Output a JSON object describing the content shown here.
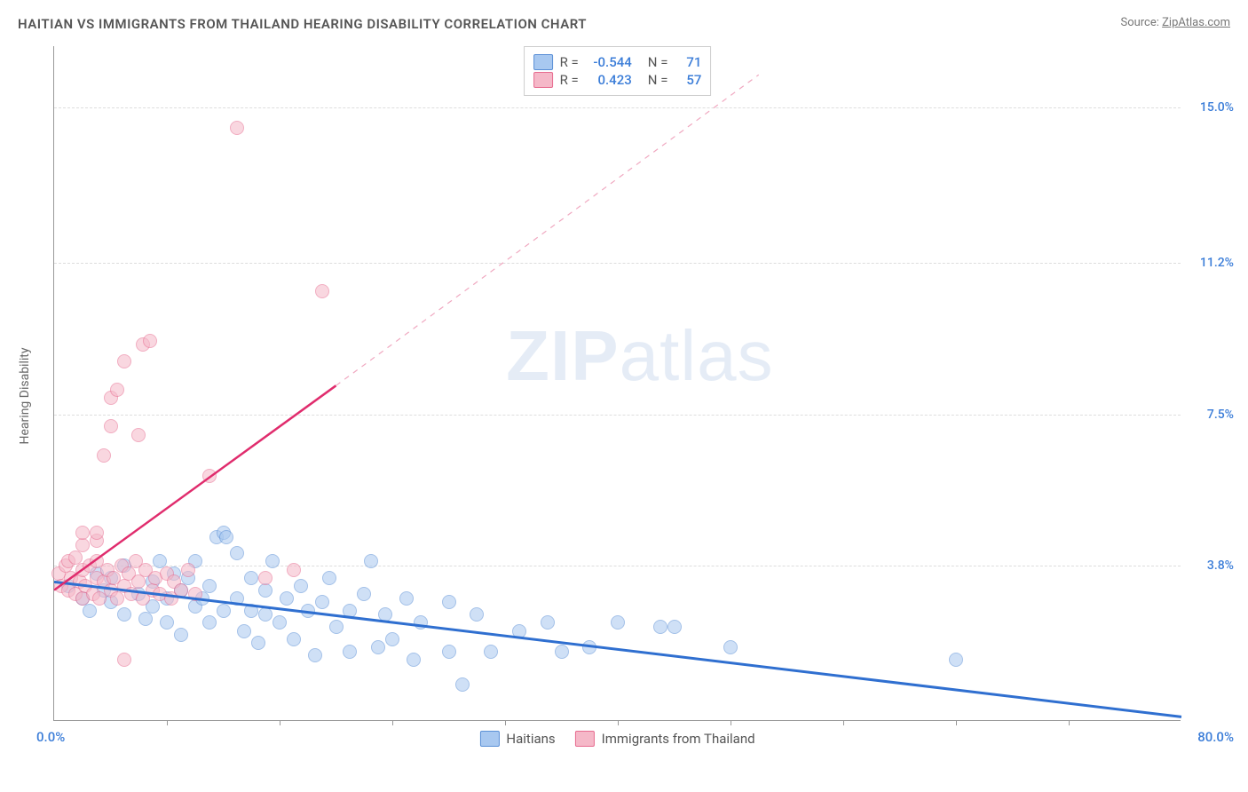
{
  "title": "HAITIAN VS IMMIGRANTS FROM THAILAND HEARING DISABILITY CORRELATION CHART",
  "source_prefix": "Source: ",
  "source_name": "ZipAtlas.com",
  "yaxis_label": "Hearing Disability",
  "watermark_bold": "ZIP",
  "watermark_light": "atlas",
  "chart": {
    "type": "scatter",
    "background_color": "#ffffff",
    "grid_color": "#dddddd",
    "axis_color": "#999999",
    "xlim": [
      0,
      80
    ],
    "ylim": [
      0,
      16.5
    ],
    "x_min_label": "0.0%",
    "x_max_label": "80.0%",
    "x_label_color": "#3b7dd8",
    "x_ticks": [
      8,
      16,
      24,
      32,
      40,
      48,
      56,
      64,
      72
    ],
    "y_gridlines": [
      {
        "value": 3.8,
        "label": "3.8%",
        "color": "#3b7dd8"
      },
      {
        "value": 7.5,
        "label": "7.5%",
        "color": "#3b7dd8"
      },
      {
        "value": 11.2,
        "label": "11.2%",
        "color": "#3b7dd8"
      },
      {
        "value": 15.0,
        "label": "15.0%",
        "color": "#3b7dd8"
      }
    ],
    "marker_radius": 8,
    "marker_stroke_width": 1.5,
    "series": [
      {
        "name": "Haitians",
        "fill_color": "#a8c8f0",
        "stroke_color": "#5a8fd6",
        "fill_opacity": 0.55,
        "trend": {
          "x1": 0,
          "y1": 3.4,
          "x2": 80,
          "y2": 0.1,
          "width": 3,
          "color": "#2f6fd0",
          "dash": "none"
        },
        "R": "-0.544",
        "N": "71",
        "points": [
          [
            1,
            3.3
          ],
          [
            2,
            3.0
          ],
          [
            2.5,
            2.7
          ],
          [
            3,
            3.6
          ],
          [
            3.5,
            3.2
          ],
          [
            4,
            2.9
          ],
          [
            4,
            3.5
          ],
          [
            5,
            2.6
          ],
          [
            5,
            3.8
          ],
          [
            6,
            3.1
          ],
          [
            6.5,
            2.5
          ],
          [
            7,
            3.4
          ],
          [
            7,
            2.8
          ],
          [
            7.5,
            3.9
          ],
          [
            8,
            3.0
          ],
          [
            8,
            2.4
          ],
          [
            8.5,
            3.6
          ],
          [
            9,
            3.2
          ],
          [
            9,
            2.1
          ],
          [
            9.5,
            3.5
          ],
          [
            10,
            2.8
          ],
          [
            10,
            3.9
          ],
          [
            10.5,
            3.0
          ],
          [
            11,
            2.4
          ],
          [
            11,
            3.3
          ],
          [
            11.5,
            4.5
          ],
          [
            12,
            2.7
          ],
          [
            12,
            4.6
          ],
          [
            12.2,
            4.5
          ],
          [
            13,
            3.0
          ],
          [
            13,
            4.1
          ],
          [
            13.5,
            2.2
          ],
          [
            14,
            3.5
          ],
          [
            14,
            2.7
          ],
          [
            14.5,
            1.9
          ],
          [
            15,
            3.2
          ],
          [
            15,
            2.6
          ],
          [
            15.5,
            3.9
          ],
          [
            16,
            2.4
          ],
          [
            16.5,
            3.0
          ],
          [
            17,
            2.0
          ],
          [
            17.5,
            3.3
          ],
          [
            18,
            2.7
          ],
          [
            18.5,
            1.6
          ],
          [
            19,
            2.9
          ],
          [
            19.5,
            3.5
          ],
          [
            20,
            2.3
          ],
          [
            21,
            2.7
          ],
          [
            21,
            1.7
          ],
          [
            22,
            3.1
          ],
          [
            22.5,
            3.9
          ],
          [
            23,
            1.8
          ],
          [
            23.5,
            2.6
          ],
          [
            24,
            2.0
          ],
          [
            25,
            3.0
          ],
          [
            25.5,
            1.5
          ],
          [
            26,
            2.4
          ],
          [
            28,
            2.9
          ],
          [
            28,
            1.7
          ],
          [
            29,
            0.9
          ],
          [
            30,
            2.6
          ],
          [
            31,
            1.7
          ],
          [
            33,
            2.2
          ],
          [
            35,
            2.4
          ],
          [
            36,
            1.7
          ],
          [
            38,
            1.8
          ],
          [
            40,
            2.4
          ],
          [
            43,
            2.3
          ],
          [
            44,
            2.3
          ],
          [
            48,
            1.8
          ],
          [
            64,
            1.5
          ]
        ]
      },
      {
        "name": "Immigrants from Thailand",
        "fill_color": "#f5b8c8",
        "stroke_color": "#e76b8f",
        "fill_opacity": 0.55,
        "trend_solid": {
          "x1": 0,
          "y1": 3.2,
          "x2": 20,
          "y2": 8.2,
          "width": 2.5,
          "color": "#e02c6d"
        },
        "trend_dash": {
          "x1": 20,
          "y1": 8.2,
          "x2": 50,
          "y2": 15.8,
          "width": 1.2,
          "color": "#f0a8c0"
        },
        "R": "0.423",
        "N": "57",
        "points": [
          [
            0.3,
            3.6
          ],
          [
            0.5,
            3.3
          ],
          [
            0.8,
            3.8
          ],
          [
            1,
            3.2
          ],
          [
            1,
            3.9
          ],
          [
            1.2,
            3.5
          ],
          [
            1.5,
            3.1
          ],
          [
            1.5,
            4.0
          ],
          [
            1.8,
            3.4
          ],
          [
            2,
            3.0
          ],
          [
            2,
            3.7
          ],
          [
            2,
            4.3
          ],
          [
            2,
            4.6
          ],
          [
            2.2,
            3.3
          ],
          [
            2.5,
            3.8
          ],
          [
            2.8,
            3.1
          ],
          [
            3,
            3.5
          ],
          [
            3,
            3.9
          ],
          [
            3,
            4.4
          ],
          [
            3,
            4.6
          ],
          [
            3.2,
            3.0
          ],
          [
            3.5,
            3.4
          ],
          [
            3.5,
            6.5
          ],
          [
            3.8,
            3.7
          ],
          [
            4,
            3.2
          ],
          [
            4,
            7.2
          ],
          [
            4,
            7.9
          ],
          [
            4.2,
            3.5
          ],
          [
            4.5,
            3.0
          ],
          [
            4.8,
            3.8
          ],
          [
            4.5,
            8.1
          ],
          [
            5,
            3.3
          ],
          [
            5,
            1.5
          ],
          [
            5,
            8.8
          ],
          [
            5.3,
            3.6
          ],
          [
            5.5,
            3.1
          ],
          [
            5.8,
            3.9
          ],
          [
            6,
            3.4
          ],
          [
            6,
            7.0
          ],
          [
            6.3,
            3.0
          ],
          [
            6.5,
            3.7
          ],
          [
            6.3,
            9.2
          ],
          [
            7,
            3.2
          ],
          [
            6.8,
            9.3
          ],
          [
            7.2,
            3.5
          ],
          [
            7.5,
            3.1
          ],
          [
            8,
            3.6
          ],
          [
            8.3,
            3.0
          ],
          [
            8.5,
            3.4
          ],
          [
            9,
            3.2
          ],
          [
            9.5,
            3.7
          ],
          [
            10,
            3.1
          ],
          [
            11,
            6.0
          ],
          [
            13,
            14.5
          ],
          [
            15,
            3.5
          ],
          [
            17,
            3.7
          ],
          [
            19,
            10.5
          ]
        ]
      }
    ],
    "legend_top": {
      "R_label": "R =",
      "N_label": "N ="
    }
  }
}
